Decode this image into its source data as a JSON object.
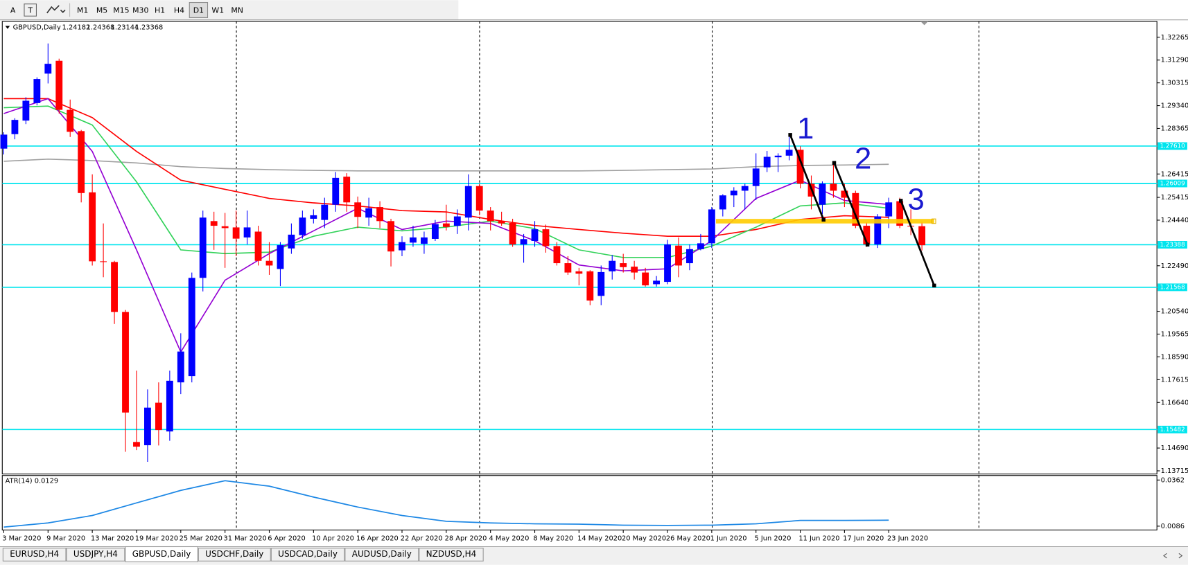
{
  "toolbar": {
    "tools": [
      "A"
    ],
    "timeframes": [
      "M1",
      "M5",
      "M15",
      "M30",
      "H1",
      "H4",
      "D1",
      "W1",
      "MN"
    ]
  },
  "tabs": [
    "EURUSD,H4",
    "USDJPY,H4",
    "GBPUSD,Daily",
    "USDCHF,Daily",
    "USDCAD,Daily",
    "AUDUSD,Daily",
    "NZDUSD,H4"
  ],
  "chart_data": {
    "type": "candlestick",
    "title": "GBPUSD,Daily",
    "categories": [
      "3 Mar 2020",
      null,
      null,
      null,
      "9 Mar 2020",
      null,
      null,
      null,
      "13 Mar 2020",
      null,
      null,
      null,
      "19 Mar 2020",
      null,
      null,
      null,
      "25 Mar 2020",
      null,
      null,
      null,
      "31 Mar 2020",
      null,
      null,
      null,
      "6 Apr 2020",
      null,
      null,
      null,
      "10 Apr 2020",
      null,
      null,
      null,
      "16 Apr 2020",
      null,
      null,
      null,
      "22 Apr 2020",
      null,
      null,
      null,
      "28 Apr 2020",
      null,
      null,
      null,
      "4 May 2020",
      null,
      null,
      null,
      "8 May 2020",
      null,
      null,
      null,
      "14 May 2020",
      null,
      null,
      null,
      "20 May 2020",
      null,
      null,
      null,
      "26 May 2020",
      null,
      null,
      null,
      "1 Jun 2020",
      null,
      null,
      null,
      "5 Jun 2020",
      null,
      null,
      null,
      "11 Jun 2020",
      null,
      null,
      null,
      "17 Jun 2020",
      null,
      null,
      null,
      "23 Jun 2020",
      null,
      null,
      null
    ],
    "open": [
      1.275,
      1.2812,
      1.287,
      1.2945,
      1.3071,
      1.3126,
      1.2916,
      1.2825,
      1.2563,
      1.2268,
      1.2265,
      1.2051,
      1.1495,
      1.1481,
      1.1663,
      1.154,
      1.175,
      1.1777,
      1.2197,
      1.244,
      1.2418,
      1.2413,
      1.237,
      1.2395,
      1.227,
      1.2235,
      1.2323,
      1.238,
      1.245,
      1.2445,
      1.251,
      1.263,
      1.252,
      1.2455,
      1.25,
      1.244,
      1.2315,
      1.2348,
      1.2343,
      1.2364,
      1.243,
      1.242,
      1.2455,
      1.259,
      1.2485,
      1.244,
      1.2432,
      1.234,
      1.2355,
      1.2405,
      1.2333,
      1.226,
      1.2225,
      1.2225,
      1.212,
      1.2225,
      1.226,
      1.2245,
      1.222,
      1.217,
      1.218,
      1.2335,
      1.226,
      1.232,
      1.2345,
      1.249,
      1.255,
      1.257,
      1.259,
      1.267,
      1.2713,
      1.272,
      1.2745,
      1.26,
      1.251,
      1.26,
      1.257,
      1.256,
      1.242,
      1.234,
      1.246,
      1.2525,
      1.242,
      1.24182
    ],
    "high": [
      1.282,
      1.288,
      1.297,
      1.3055,
      1.32,
      1.3135,
      1.296,
      1.283,
      1.264,
      1.243,
      1.227,
      1.206,
      1.18,
      1.172,
      1.175,
      1.18,
      1.196,
      1.222,
      1.2485,
      1.248,
      1.2475,
      1.2485,
      1.2485,
      1.242,
      1.235,
      1.235,
      1.243,
      1.2485,
      1.249,
      1.254,
      1.265,
      1.2645,
      1.2545,
      1.254,
      1.2525,
      1.245,
      1.2375,
      1.242,
      1.2395,
      1.2445,
      1.251,
      1.249,
      1.264,
      1.26,
      1.25,
      1.248,
      1.245,
      1.2385,
      1.244,
      1.2425,
      1.235,
      1.229,
      1.224,
      1.223,
      1.225,
      1.2295,
      1.23,
      1.227,
      1.224,
      1.2205,
      1.236,
      1.237,
      1.234,
      1.2385,
      1.25,
      1.2555,
      1.2585,
      1.26,
      1.273,
      1.274,
      1.273,
      1.281,
      1.276,
      1.2635,
      1.261,
      1.269,
      1.26,
      1.257,
      1.2435,
      1.247,
      1.254,
      1.254,
      1.249,
      1.24368
    ],
    "low": [
      1.2725,
      1.279,
      1.2855,
      1.2935,
      1.3029,
      1.29,
      1.28,
      1.252,
      1.225,
      1.22,
      1.2,
      1.1453,
      1.146,
      1.141,
      1.148,
      1.15,
      1.17,
      1.175,
      1.2139,
      1.2317,
      1.224,
      1.229,
      1.234,
      1.225,
      1.221,
      1.2162,
      1.23,
      1.2365,
      1.243,
      1.241,
      1.248,
      1.248,
      1.241,
      1.242,
      1.241,
      1.2246,
      1.229,
      1.233,
      1.23,
      1.2355,
      1.24,
      1.2385,
      1.24,
      1.2465,
      1.24,
      1.242,
      1.233,
      1.2262,
      1.233,
      1.2305,
      1.225,
      1.221,
      1.2165,
      1.208,
      1.208,
      1.219,
      1.222,
      1.219,
      1.216,
      1.216,
      1.217,
      1.22,
      1.223,
      1.2315,
      1.2325,
      1.246,
      1.25,
      1.249,
      1.253,
      1.265,
      1.265,
      1.27,
      1.258,
      1.249,
      1.247,
      1.254,
      1.25,
      1.241,
      1.233,
      1.2325,
      1.241,
      1.241,
      1.238,
      1.23144
    ],
    "close": [
      1.281,
      1.2873,
      1.2955,
      1.3048,
      1.3113,
      1.2916,
      1.2822,
      1.256,
      1.2268,
      1.2265,
      1.2051,
      1.1621,
      1.1475,
      1.1642,
      1.1546,
      1.1757,
      1.1882,
      1.2197,
      1.2455,
      1.242,
      1.241,
      1.2365,
      1.2413,
      1.227,
      1.225,
      1.2337,
      1.2382,
      1.2455,
      1.2465,
      1.251,
      1.2625,
      1.252,
      1.2458,
      1.2495,
      1.244,
      1.231,
      1.235,
      1.237,
      1.237,
      1.2427,
      1.2415,
      1.246,
      1.259,
      1.2485,
      1.244,
      1.243,
      1.234,
      1.2363,
      1.2405,
      1.2333,
      1.226,
      1.222,
      1.2215,
      1.21,
      1.2222,
      1.227,
      1.2243,
      1.222,
      1.2165,
      1.2185,
      1.234,
      1.225,
      1.232,
      1.2345,
      1.249,
      1.255,
      1.257,
      1.259,
      1.2665,
      1.2715,
      1.272,
      1.2745,
      1.26,
      1.2545,
      1.26,
      1.257,
      1.254,
      1.242,
      1.234,
      1.246,
      1.252,
      1.242,
      1.2418,
      1.23368
    ],
    "up_color": "#0000ff",
    "down_color": "#ff0000",
    "ylim": [
      1.1358,
      1.3288
    ],
    "yticks": [
      1.32265,
      {
        "value": 1.3129,
        "label": "1.31290"
      },
      1.30315,
      {
        "value": 1.2934,
        "label": "1.29340"
      },
      1.28365,
      1.26415,
      1.25415,
      {
        "value": 1.2444,
        "label": "1.24440"
      },
      {
        "value": 1.2249,
        "label": "1.22490"
      },
      {
        "value": 1.2054,
        "label": "1.20540"
      },
      1.19565,
      {
        "value": 1.1859,
        "label": "1.18590"
      },
      1.17615,
      {
        "value": 1.1664,
        "label": "1.16640"
      },
      {
        "value": 1.1469,
        "label": "1.14690"
      },
      1.13715
    ],
    "levels": [
      {
        "value": 1.2761,
        "label": "1.27610"
      },
      1.26009,
      1.23388,
      1.21568,
      1.15482
    ],
    "level_color": "#00e5ee",
    "moving_averages": [
      {
        "color": "#a0a0a0",
        "values": [
          1.2696,
          1.2705,
          1.2699,
          1.2689,
          1.2673,
          1.2665,
          1.266,
          1.2657,
          1.2655,
          1.2655,
          1.2655,
          1.2655,
          1.2655,
          1.2655,
          1.2657,
          1.266,
          1.2663,
          1.2673,
          1.2678,
          1.268,
          1.2683
        ]
      },
      {
        "color": "#ff0000",
        "values": [
          1.2964,
          1.2964,
          1.2883,
          1.2738,
          1.2615,
          1.2576,
          1.2537,
          1.2518,
          1.2505,
          1.2485,
          1.2479,
          1.2447,
          1.2421,
          1.2404,
          1.2388,
          1.2375,
          1.2375,
          1.2404,
          1.2447,
          1.2463,
          1.2456
        ]
      },
      {
        "color": "#32d25a",
        "values": [
          1.2925,
          1.2932,
          1.2851,
          1.2608,
          1.2317,
          1.2301,
          1.2307,
          1.2375,
          1.2414,
          1.2398,
          1.2414,
          1.244,
          1.2408,
          1.2317,
          1.2284,
          1.2284,
          1.2333,
          1.2414,
          1.2505,
          1.2518,
          1.2495
        ]
      },
      {
        "color": "#9400d3",
        "values": [
          1.29,
          1.2964,
          1.2738,
          1.2317,
          1.188,
          1.2187,
          1.2301,
          1.2398,
          1.2495,
          1.2404,
          1.244,
          1.243,
          1.2356,
          1.2252,
          1.2227,
          1.2236,
          1.2356,
          1.2537,
          1.2615,
          1.2528,
          1.2511
        ]
      }
    ],
    "annotations": [
      "1",
      "2",
      "3"
    ],
    "atr": {
      "title": "ATR(14) 0.0129",
      "color": "#1e88e5",
      "values": [
        0.008,
        0.0105,
        0.015,
        0.0225,
        0.03,
        0.0358,
        0.0325,
        0.026,
        0.02,
        0.015,
        0.0115,
        0.0105,
        0.01,
        0.0098,
        0.0092,
        0.009,
        0.0092,
        0.01,
        0.012,
        0.012,
        0.0122
      ],
      "ylim": [
        0.0063,
        0.038
      ],
      "yticks": [
        0.0362,
        0.0086
      ]
    }
  }
}
